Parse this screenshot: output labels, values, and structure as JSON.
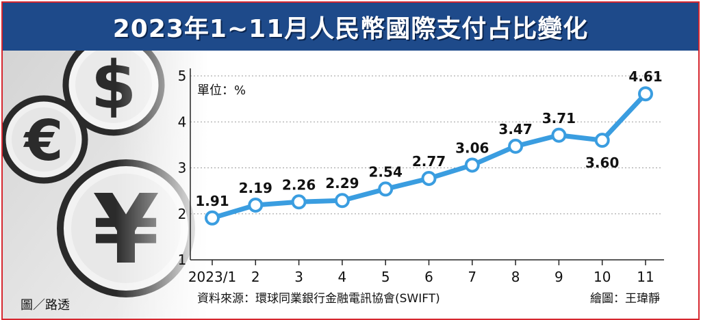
{
  "title": "2023年1~11月人民幣國際支付占比變化",
  "unit_label": "單位：%",
  "source": "資料來源：環球同業銀行金融電訊協會(SWIFT)",
  "chart_credit": "繪圖：王瑋靜",
  "image_credit": "圖／路透",
  "icons": [
    "euro-coin-icon",
    "dollar-coin-icon",
    "yen-coin-icon"
  ],
  "colors": {
    "title_bg": "#1e4a8a",
    "line": "#3a9de0",
    "marker_fill": "#ffffff",
    "border": "#d6262e"
  },
  "chart_data": {
    "type": "line",
    "categories": [
      "2023/1",
      "2",
      "3",
      "4",
      "5",
      "6",
      "7",
      "8",
      "9",
      "10",
      "11"
    ],
    "values": [
      1.91,
      2.19,
      2.26,
      2.29,
      2.54,
      2.77,
      3.06,
      3.47,
      3.71,
      3.6,
      4.61
    ],
    "data_labels": [
      "1.91",
      "2.19",
      "2.26",
      "2.29",
      "2.54",
      "2.77",
      "3.06",
      "3.47",
      "3.71",
      "3.60",
      "4.61"
    ],
    "ylim": [
      1,
      5
    ],
    "yticks": [
      1,
      2,
      3,
      4,
      5
    ],
    "grid": true
  }
}
